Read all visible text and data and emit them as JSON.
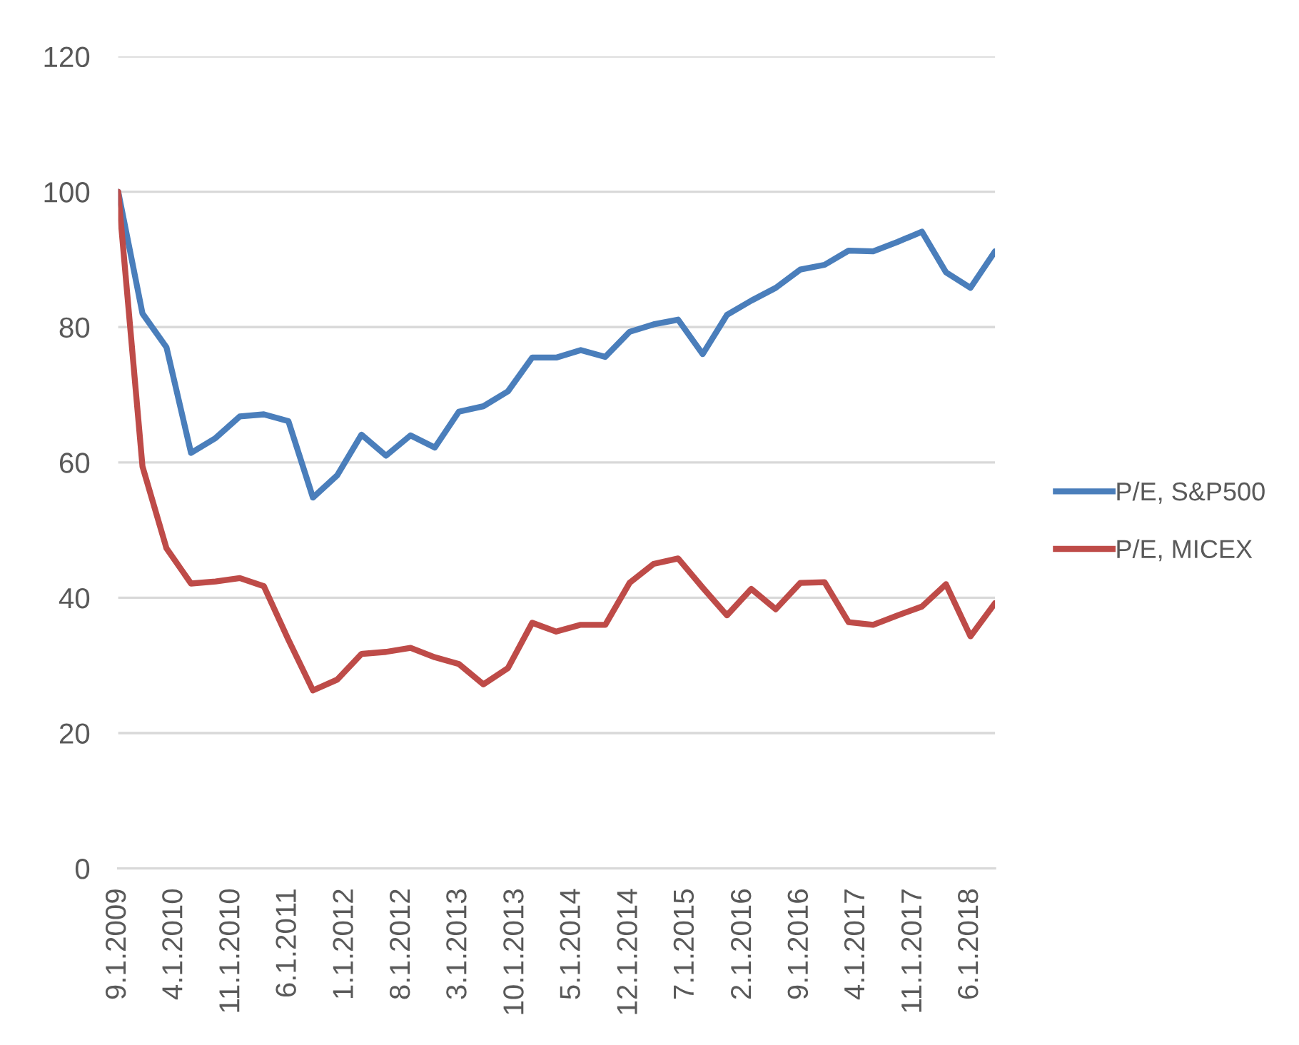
{
  "chart_data": {
    "type": "line",
    "x": [
      "2009-09",
      "2009-12",
      "2010-03",
      "2010-06",
      "2010-09",
      "2010-12",
      "2011-03",
      "2011-06",
      "2011-09",
      "2011-12",
      "2012-03",
      "2012-06",
      "2012-09",
      "2012-12",
      "2013-03",
      "2013-06",
      "2013-09",
      "2013-12",
      "2014-03",
      "2014-06",
      "2014-09",
      "2014-12",
      "2015-03",
      "2015-06",
      "2015-09",
      "2015-12",
      "2016-03",
      "2016-06",
      "2016-09",
      "2016-12",
      "2017-03",
      "2017-06",
      "2017-09",
      "2017-12",
      "2018-03",
      "2018-06",
      "2018-09"
    ],
    "series": [
      {
        "name": "P/E, S&P500",
        "color": "#4a7ebb",
        "values": [
          100,
          82,
          77,
          61.4,
          63.6,
          66.8,
          67.1,
          66.1,
          54.8,
          58.1,
          64.1,
          61,
          64,
          62.2,
          67.5,
          68.3,
          70.5,
          75.5,
          75.5,
          76.6,
          75.6,
          79.3,
          80.4,
          81.1,
          76,
          81.8,
          83.9,
          85.8,
          88.5,
          89.2,
          91.3,
          91.2,
          92.6,
          94.1,
          88.1,
          85.8,
          91.2
        ]
      },
      {
        "name": "P/E, MICEX",
        "color": "#be4b48",
        "values": [
          100,
          59.4,
          47.3,
          42.1,
          42.4,
          42.9,
          41.7,
          33.8,
          26.3,
          27.9,
          31.7,
          32,
          32.6,
          31.2,
          30.2,
          27.2,
          29.6,
          36.3,
          35,
          36,
          36,
          42.2,
          45,
          45.8,
          41.5,
          37.4,
          41.3,
          38.3,
          42.2,
          42.3,
          36.4,
          36,
          37.4,
          38.7,
          42,
          34.3,
          39.2
        ]
      }
    ],
    "xlim": [
      "2009-09",
      "2018-09"
    ],
    "xticks": [
      {
        "value": "2009-09",
        "label": "9.1.2009"
      },
      {
        "value": "2010-04",
        "label": "4.1.2010"
      },
      {
        "value": "2010-11",
        "label": "11.1.2010"
      },
      {
        "value": "2011-06",
        "label": "6.1.2011"
      },
      {
        "value": "2012-01",
        "label": "1.1.2012"
      },
      {
        "value": "2012-08",
        "label": "8.1.2012"
      },
      {
        "value": "2013-03",
        "label": "3.1.2013"
      },
      {
        "value": "2013-10",
        "label": "10.1.2013"
      },
      {
        "value": "2014-05",
        "label": "5.1.2014"
      },
      {
        "value": "2014-12",
        "label": "12.1.2014"
      },
      {
        "value": "2015-07",
        "label": "7.1.2015"
      },
      {
        "value": "2016-02",
        "label": "2.1.2016"
      },
      {
        "value": "2016-09",
        "label": "9.1.2016"
      },
      {
        "value": "2017-04",
        "label": "4.1.2017"
      },
      {
        "value": "2017-11",
        "label": "11.1.2017"
      },
      {
        "value": "2018-06",
        "label": "6.1.2018"
      }
    ],
    "ylim": [
      0,
      120
    ],
    "yticks": [
      0,
      20,
      40,
      60,
      80,
      100,
      120
    ],
    "grid": "y",
    "legend": "right"
  }
}
